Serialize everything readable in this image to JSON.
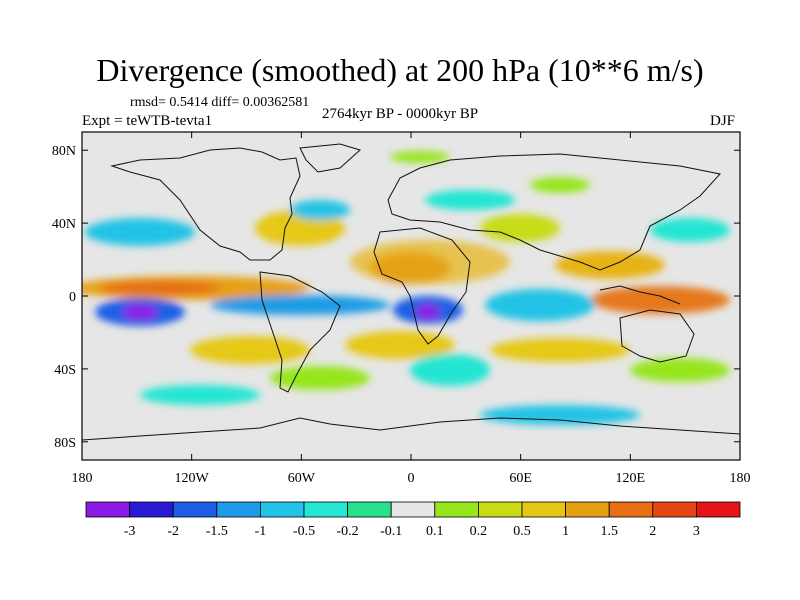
{
  "header": {
    "title": "Divergence (smoothed) at 200 hPa (10**6 m/s)",
    "stats": "rmsd= 0.5414  diff= 0.00362581",
    "experiment": "Expt = teWTB-tevta1",
    "period": "2764kyr BP - 0000kyr BP",
    "season": "DJF"
  },
  "chart_data": {
    "type": "heatmap",
    "title": "Divergence (smoothed) at 200 hPa (10**6 m/s)",
    "xlabel": "",
    "ylabel": "",
    "xlim": [
      -180,
      180
    ],
    "ylim": [
      -90,
      90
    ],
    "x_ticks": [
      {
        "value": -180,
        "label": "180"
      },
      {
        "value": -120,
        "label": "120W"
      },
      {
        "value": -60,
        "label": "60W"
      },
      {
        "value": 0,
        "label": "0"
      },
      {
        "value": 60,
        "label": "60E"
      },
      {
        "value": 120,
        "label": "120E"
      },
      {
        "value": 180,
        "label": "180"
      }
    ],
    "y_ticks": [
      {
        "value": 80,
        "label": "80N"
      },
      {
        "value": 40,
        "label": "40N"
      },
      {
        "value": 0,
        "label": "0"
      },
      {
        "value": -40,
        "label": "40S"
      },
      {
        "value": -80,
        "label": "80S"
      }
    ],
    "colorbar": {
      "colors": [
        "#8b1ae6",
        "#2a19d4",
        "#1e5ee6",
        "#1e9be6",
        "#22c3e6",
        "#24e6d2",
        "#27e08c",
        "#e6e6e6",
        "#96e61e",
        "#c8dc14",
        "#e6c814",
        "#e6a014",
        "#e66e14",
        "#e64614",
        "#e61414"
      ],
      "labels": [
        "-3",
        "-2",
        "-1.5",
        "-1",
        "-0.5",
        "-0.2",
        "-0.1",
        "0.1",
        "0.2",
        "0.5",
        "1",
        "1.5",
        "2",
        "3"
      ]
    },
    "features": [
      {
        "name": "tropical-pacific-positive-band",
        "lon": -150,
        "lat": 4,
        "value": 1.5
      },
      {
        "name": "south-pacific-convergence-minimum",
        "lon": -145,
        "lat": -10,
        "value": -3
      },
      {
        "name": "south-atlantic-africa-minimum",
        "lon": 10,
        "lat": -12,
        "value": -3
      },
      {
        "name": "north-africa-positive",
        "lon": 0,
        "lat": 18,
        "value": 1.5
      },
      {
        "name": "indian-ocean-negative",
        "lon": 75,
        "lat": -5,
        "value": -1
      },
      {
        "name": "maritime-continent-positive",
        "lon": 120,
        "lat": -3,
        "value": 2
      },
      {
        "name": "north-pacific-negative",
        "lon": -140,
        "lat": 35,
        "value": -0.5
      },
      {
        "name": "southern-ocean-negative-band",
        "lon": 60,
        "lat": -50,
        "value": -0.5
      }
    ]
  }
}
